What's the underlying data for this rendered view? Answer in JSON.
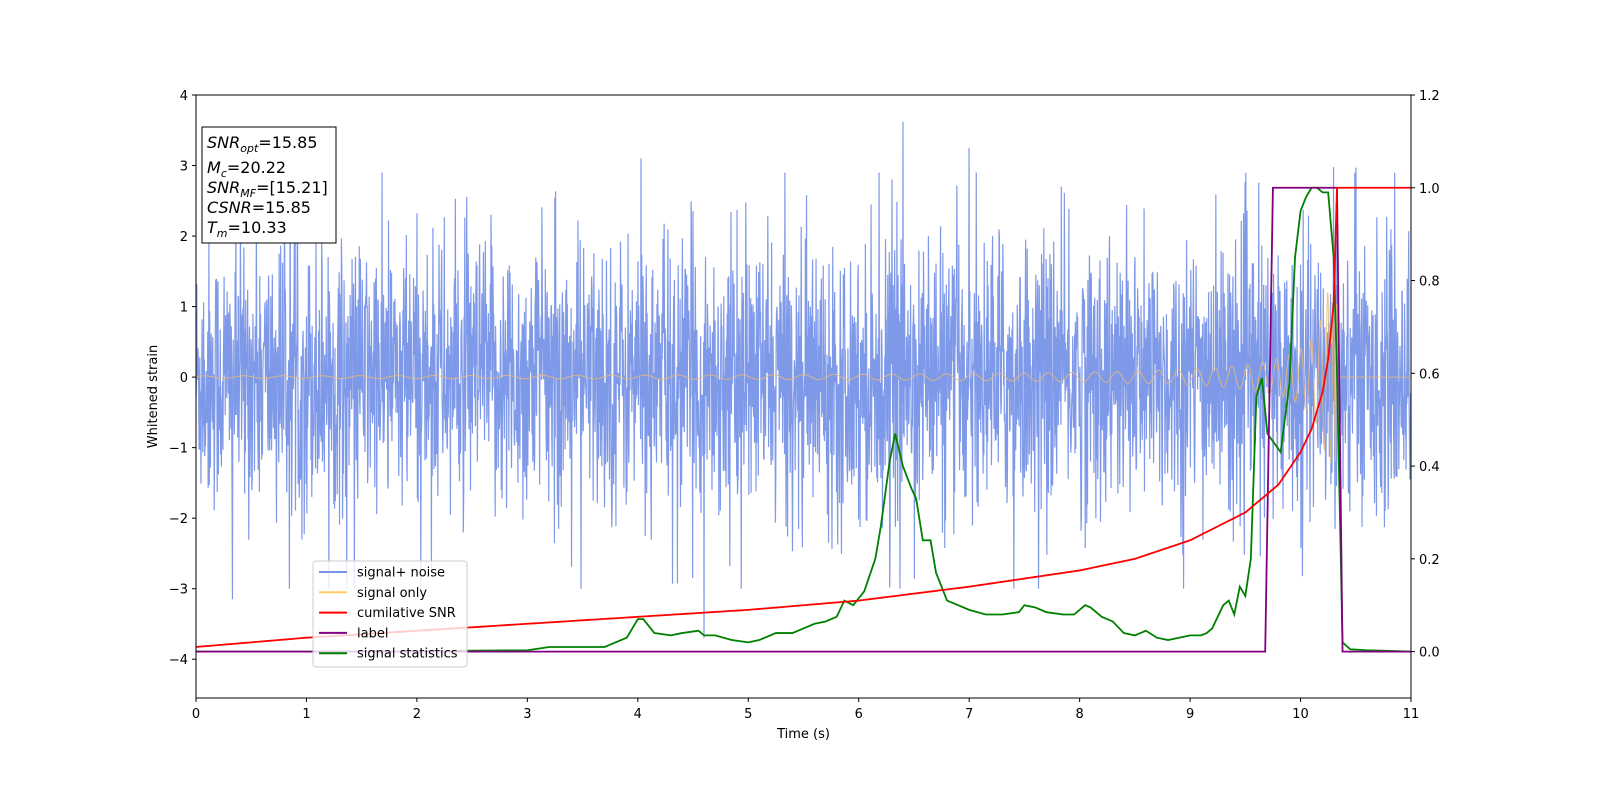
{
  "chart_data": {
    "type": "line",
    "xlabel": "Time (s)",
    "ylabel": "Whitened strain",
    "xlim": [
      0,
      11
    ],
    "ylim_left": [
      -4.55,
      4.0
    ],
    "ylim_right": [
      -0.1,
      1.2
    ],
    "x_ticks": [
      0,
      1,
      2,
      3,
      4,
      5,
      6,
      7,
      8,
      9,
      10,
      11
    ],
    "y_ticks_left": [
      4,
      3,
      2,
      1,
      0,
      -1,
      -2,
      -3,
      -4
    ],
    "y_tick_labels_left": [
      "4",
      "3",
      "2",
      "1",
      "0",
      "−1",
      "−2",
      "−3",
      "−4"
    ],
    "y_ticks_right": [
      1.2,
      1.0,
      0.8,
      0.6,
      0.4,
      0.2,
      0.0
    ],
    "y_tick_labels_right": [
      "1.2",
      "1.0",
      "0.8",
      "0.6",
      "0.4",
      "0.2",
      "0.0"
    ],
    "legend_position": "lower-left",
    "legend": [
      {
        "label": "signal+ noise",
        "color": "#7893e8"
      },
      {
        "label": "signal only",
        "color": "#ffc966"
      },
      {
        "label": "cumilative SNR",
        "color": "#ff0000"
      },
      {
        "label": "label",
        "color": "#800080"
      },
      {
        "label": "signal statistics",
        "color": "#008000"
      }
    ],
    "info_box": [
      {
        "main": "SNR",
        "sub": "opt",
        "rest": "=15.85"
      },
      {
        "main": "M",
        "sub": "c",
        "rest": "=20.22"
      },
      {
        "main": "SNR",
        "sub": "MF",
        "rest": "=[15.21]"
      },
      {
        "main": "CSNR",
        "sub": "",
        "rest": "=15.85"
      },
      {
        "main": "T",
        "sub": "m",
        "rest": "=10.33"
      }
    ],
    "series": [
      {
        "name": "signal+ noise",
        "axis": "left",
        "color": "#7893e8",
        "description_type": "noise",
        "x_range": [
          0,
          11
        ],
        "typical_amplitude": 1.5,
        "spikes": [
          [
            0.33,
            -3.15
          ],
          [
            4.6,
            -3.7
          ],
          [
            4.03,
            3.1
          ],
          [
            6.4,
            3.62
          ],
          [
            6.3,
            2.8
          ],
          [
            7.0,
            3.25
          ],
          [
            10.3,
            -4.15
          ],
          [
            10.3,
            2.98
          ],
          [
            10.5,
            2.97
          ]
        ]
      },
      {
        "name": "signal only",
        "axis": "left",
        "color": "#e8b878",
        "description_type": "chirp",
        "merger_time": 10.33,
        "peak_amplitude": 1.2
      },
      {
        "name": "cumilative SNR",
        "axis": "right",
        "color": "#ff0000",
        "x": [
          0,
          1,
          2,
          3,
          4,
          5,
          6,
          7,
          8,
          8.5,
          9,
          9.5,
          9.8,
          10.0,
          10.1,
          10.2,
          10.25,
          10.3,
          10.33,
          11
        ],
        "y": [
          0.01,
          0.03,
          0.045,
          0.06,
          0.075,
          0.09,
          0.11,
          0.14,
          0.175,
          0.2,
          0.24,
          0.3,
          0.36,
          0.43,
          0.48,
          0.56,
          0.63,
          0.75,
          1.0,
          1.0
        ]
      },
      {
        "name": "label",
        "axis": "right",
        "color": "#800080",
        "x": [
          0,
          9.68,
          9.75,
          10.33,
          10.38,
          11
        ],
        "y": [
          0.0,
          0.0,
          1.0,
          1.0,
          0.0,
          0.0
        ]
      },
      {
        "name": "signal statistics",
        "axis": "right",
        "color": "#008000",
        "x": [
          0,
          2,
          2.5,
          3.0,
          3.2,
          3.5,
          3.7,
          3.9,
          4.0,
          4.05,
          4.15,
          4.3,
          4.4,
          4.55,
          4.6,
          4.7,
          4.85,
          5.0,
          5.1,
          5.25,
          5.4,
          5.5,
          5.6,
          5.7,
          5.8,
          5.87,
          5.95,
          6.05,
          6.15,
          6.2,
          6.28,
          6.33,
          6.4,
          6.48,
          6.52,
          6.58,
          6.65,
          6.7,
          6.8,
          6.9,
          7.0,
          7.15,
          7.3,
          7.45,
          7.5,
          7.6,
          7.7,
          7.85,
          7.95,
          8.0,
          8.05,
          8.1,
          8.2,
          8.3,
          8.4,
          8.5,
          8.6,
          8.7,
          8.8,
          8.9,
          9.0,
          9.1,
          9.15,
          9.2,
          9.3,
          9.35,
          9.4,
          9.45,
          9.5,
          9.55,
          9.6,
          9.65,
          9.7,
          9.82,
          9.9,
          9.95,
          10.0,
          10.05,
          10.1,
          10.15,
          10.2,
          10.25,
          10.3,
          10.33,
          10.38,
          10.45,
          10.6,
          11
        ],
        "y": [
          0.0,
          0.0,
          0.002,
          0.003,
          0.01,
          0.01,
          0.01,
          0.03,
          0.07,
          0.07,
          0.04,
          0.035,
          0.04,
          0.045,
          0.035,
          0.035,
          0.025,
          0.02,
          0.025,
          0.04,
          0.04,
          0.05,
          0.06,
          0.065,
          0.075,
          0.11,
          0.1,
          0.13,
          0.2,
          0.27,
          0.41,
          0.47,
          0.4,
          0.35,
          0.33,
          0.24,
          0.24,
          0.17,
          0.11,
          0.1,
          0.09,
          0.08,
          0.08,
          0.085,
          0.1,
          0.095,
          0.085,
          0.08,
          0.08,
          0.09,
          0.1,
          0.095,
          0.075,
          0.065,
          0.04,
          0.035,
          0.045,
          0.03,
          0.025,
          0.03,
          0.035,
          0.035,
          0.04,
          0.05,
          0.1,
          0.11,
          0.08,
          0.14,
          0.12,
          0.2,
          0.55,
          0.59,
          0.47,
          0.43,
          0.58,
          0.85,
          0.95,
          0.98,
          1.0,
          1.0,
          0.99,
          0.99,
          0.85,
          0.6,
          0.02,
          0.005,
          0.003,
          0.0
        ]
      }
    ]
  }
}
